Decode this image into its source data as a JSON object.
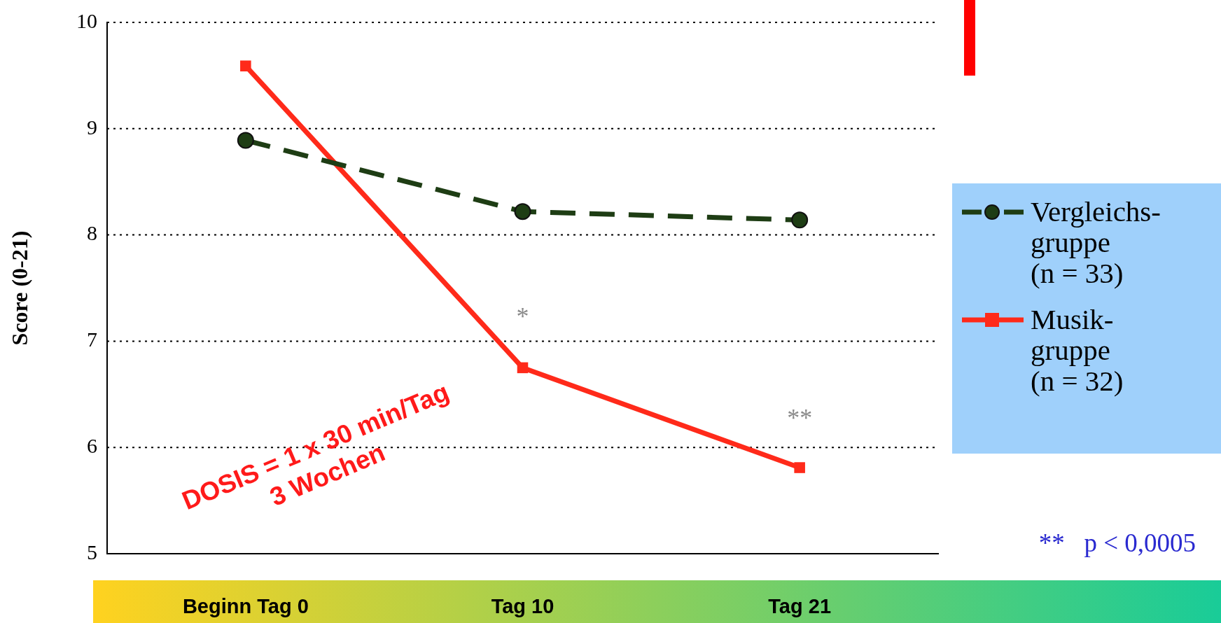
{
  "chart_data": {
    "type": "line",
    "ylabel": "Score (0-21)",
    "categories": [
      "Beginn Tag 0",
      "Tag 10",
      "Tag 21"
    ],
    "series": [
      {
        "name": "Vergleichs-\ngruppe\n(n = 33)",
        "color": "#1e3d14",
        "values": [
          8.89,
          8.22,
          8.14
        ],
        "marker": "circle",
        "line_style": "dashed"
      },
      {
        "name": "Musik-\ngruppe\n(n = 32)",
        "color": "#ff2a1a",
        "values": [
          9.59,
          6.75,
          5.81
        ],
        "marker": "square",
        "line_style": "solid"
      }
    ],
    "ylim": [
      5,
      10
    ],
    "yticks": [
      5,
      6,
      7,
      8,
      9,
      10
    ],
    "grid": "y",
    "legend": "right",
    "annotations": [
      "*",
      "**",
      "DOSIS = 1 x 30 min/Tag\n3 Wochen",
      "**   p < 0,0005"
    ]
  }
}
